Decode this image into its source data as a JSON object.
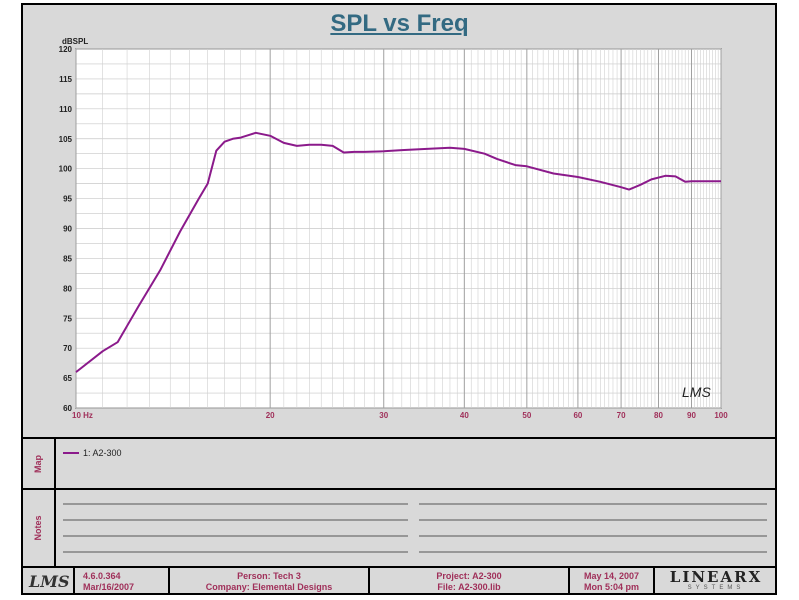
{
  "title": "SPL vs Freq",
  "chart_data": {
    "type": "line",
    "title": "SPL vs Freq",
    "ylabel": "dBSPL",
    "xlabel": "",
    "x_scale": "log",
    "xlim": [
      10,
      100
    ],
    "ylim": [
      60,
      120
    ],
    "x_ticks": [
      10,
      20,
      30,
      40,
      50,
      60,
      70,
      80,
      90,
      100
    ],
    "x_tick_labels": [
      "10 Hz",
      "20",
      "30",
      "40",
      "50",
      "60",
      "70",
      "80",
      "90",
      "100"
    ],
    "y_ticks": [
      60,
      65,
      70,
      75,
      80,
      85,
      90,
      95,
      100,
      105,
      110,
      115,
      120
    ],
    "y_tick_labels": [
      "60",
      "65",
      "70",
      "75",
      "80",
      "85",
      "90",
      "95",
      "100",
      "105",
      "110",
      "115",
      "120"
    ],
    "grid": true,
    "series": [
      {
        "name": "1: A2-300",
        "color": "#8b1a8b",
        "x": [
          10,
          11,
          11.6,
          12.5,
          13.5,
          14.5,
          15.5,
          16,
          16.5,
          17,
          17.5,
          18,
          18.5,
          19,
          20,
          21,
          22,
          23,
          24,
          25,
          26,
          27,
          28,
          30,
          32,
          35,
          38,
          40,
          43,
          45,
          48,
          50,
          55,
          60,
          65,
          70,
          72,
          75,
          78,
          82,
          85,
          88,
          90,
          95,
          100
        ],
        "values": [
          66,
          69.5,
          71,
          77,
          83,
          89.5,
          95,
          97.5,
          103,
          104.5,
          105,
          105.2,
          105.6,
          106,
          105.5,
          104.3,
          103.8,
          104,
          104,
          103.8,
          102.7,
          102.8,
          102.8,
          102.9,
          103.1,
          103.3,
          103.5,
          103.3,
          102.5,
          101.6,
          100.6,
          100.4,
          99.2,
          98.6,
          97.8,
          96.9,
          96.5,
          97.3,
          98.2,
          98.8,
          98.7,
          97.8,
          97.9,
          97.9,
          97.9
        ]
      }
    ],
    "watermark": "LMS"
  },
  "map": {
    "label": "Map",
    "legend": "1: A2-300"
  },
  "notes": {
    "label": "Notes"
  },
  "footer": {
    "logo": "LMS",
    "version": "4.6.0.364",
    "version_date": "Mar/16/2007",
    "person": "Person: Tech 3",
    "company": "Company: Elemental Designs",
    "project": "Project: A2-300",
    "file": "File: A2-300.lib",
    "date": "May 14, 2007",
    "time": "Mon  5:04 pm",
    "brand": "LINEARX",
    "brand_sub": "SYSTEMS"
  }
}
